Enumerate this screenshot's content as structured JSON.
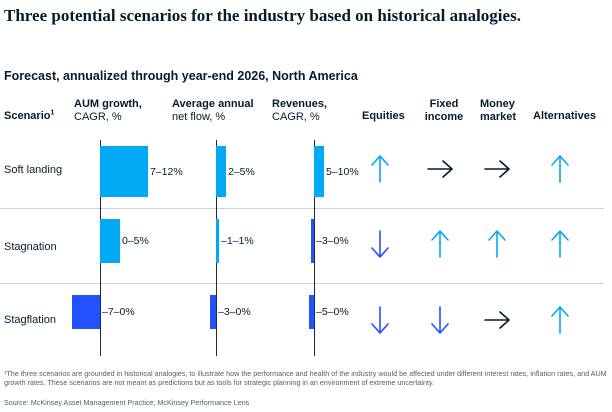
{
  "title": "Three potential scenarios for the industry based on historical analogies.",
  "subtitle": "Forecast, annualized through year-end 2026, North America",
  "headers": {
    "scenario": "Scenario",
    "scenario_sup": "1",
    "aum_l1": "AUM growth,",
    "aum_l2": "CAGR, %",
    "flow_l1": "Average annual",
    "flow_l2": "net flow, %",
    "rev_l1": "Revenues,",
    "rev_l2": "CAGR, %",
    "equities": "Equities",
    "fixed_l1": "Fixed",
    "fixed_l2": "income",
    "money_l1": "Money",
    "money_l2": "market",
    "alternatives": "Alternatives"
  },
  "chart_data": {
    "type": "table",
    "metrics": [
      "AUM growth, CAGR, %",
      "Average annual net flow, %",
      "Revenues, CAGR, %"
    ],
    "asset_classes": [
      "Equities",
      "Fixed income",
      "Money market",
      "Alternatives"
    ],
    "rows": [
      {
        "scenario": "Soft landing",
        "aum": {
          "label": "7–12%",
          "low": 7,
          "high": 12
        },
        "flow": {
          "label": "2–5%",
          "low": 2,
          "high": 5
        },
        "revenue": {
          "label": "5–10%",
          "low": 5,
          "high": 10
        },
        "outlook": [
          "up",
          "flat",
          "flat",
          "up"
        ]
      },
      {
        "scenario": "Stagnation",
        "aum": {
          "label": "0–5%",
          "low": 0,
          "high": 5
        },
        "flow": {
          "label": "–1–1%",
          "low": -1,
          "high": 1
        },
        "revenue": {
          "label": "–3–0%",
          "low": -3,
          "high": 0
        },
        "outlook": [
          "down",
          "up",
          "up",
          "up"
        ]
      },
      {
        "scenario": "Stagflation",
        "aum": {
          "label": "–7–0%",
          "low": -7,
          "high": 0
        },
        "flow": {
          "label": "–3–0%",
          "low": -3,
          "high": 0
        },
        "revenue": {
          "label": "–5–0%",
          "low": -5,
          "high": 0
        },
        "outlook": [
          "down",
          "down",
          "flat",
          "up"
        ]
      }
    ]
  },
  "colors": {
    "positive": "#00a9f4",
    "negative": "#2251ff",
    "up_arrow": "#00a9f4",
    "down_arrow": "#2251ff",
    "flat_arrow": "#051c2c"
  },
  "footnote": "¹The three scenarios are grounded in historical analogies, to illustrate how the performance and health of the industry would be affected under different interest rates, inflation rates, and AUM growth rates. These scenarios are not meant as predictions but as tools for strategic planning in an environment of extreme uncertainty.",
  "source": "Source: McKinsey Asset Management Practice; McKinsey Performance Lens"
}
